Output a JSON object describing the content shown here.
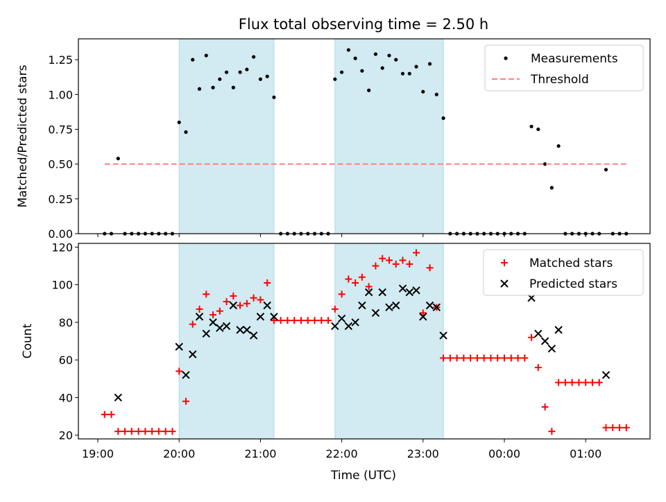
{
  "chart_data": [
    {
      "type": "scatter",
      "title": "Flux total observing time = 2.50 h",
      "xlabel": "",
      "ylabel": "Matched/Predicted stars",
      "x_unit": "time (UTC)",
      "ylim": [
        0,
        1.4
      ],
      "yticks": [
        "0.00",
        "0.25",
        "0.50",
        "0.75",
        "1.00",
        "1.25"
      ],
      "ytick_values": [
        0,
        0.25,
        0.5,
        0.75,
        1.0,
        1.25
      ],
      "shaded_intervals": [
        [
          "20:00",
          "21:10"
        ],
        [
          "21:55",
          "23:15"
        ]
      ],
      "shade_color": "#add8e6",
      "legend": {
        "placement": "top-right",
        "entries": [
          "Measurements",
          "Threshold"
        ]
      },
      "series": [
        {
          "name": "Measurements",
          "color": "#000000",
          "marker": "dot",
          "points": [
            [
              "19:05",
              0
            ],
            [
              "19:10",
              0
            ],
            [
              "19:15",
              0.54
            ],
            [
              "19:20",
              0
            ],
            [
              "19:25",
              0
            ],
            [
              "19:30",
              0
            ],
            [
              "19:35",
              0
            ],
            [
              "19:40",
              0
            ],
            [
              "19:45",
              0
            ],
            [
              "19:50",
              0
            ],
            [
              "19:55",
              0
            ],
            [
              "20:00",
              0.8
            ],
            [
              "20:05",
              0.73
            ],
            [
              "20:10",
              1.25
            ],
            [
              "20:15",
              1.04
            ],
            [
              "20:20",
              1.28
            ],
            [
              "20:25",
              1.05
            ],
            [
              "20:30",
              1.11
            ],
            [
              "20:35",
              1.16
            ],
            [
              "20:40",
              1.05
            ],
            [
              "20:45",
              1.16
            ],
            [
              "20:50",
              1.18
            ],
            [
              "20:55",
              1.27
            ],
            [
              "21:00",
              1.11
            ],
            [
              "21:05",
              1.13
            ],
            [
              "21:10",
              0.98
            ],
            [
              "21:15",
              0
            ],
            [
              "21:20",
              0
            ],
            [
              "21:25",
              0
            ],
            [
              "21:30",
              0
            ],
            [
              "21:35",
              0
            ],
            [
              "21:40",
              0
            ],
            [
              "21:45",
              0
            ],
            [
              "21:50",
              0
            ],
            [
              "21:55",
              1.11
            ],
            [
              "22:00",
              1.16
            ],
            [
              "22:05",
              1.32
            ],
            [
              "22:10",
              1.26
            ],
            [
              "22:15",
              1.17
            ],
            [
              "22:20",
              1.03
            ],
            [
              "22:25",
              1.29
            ],
            [
              "22:30",
              1.19
            ],
            [
              "22:35",
              1.28
            ],
            [
              "22:40",
              1.25
            ],
            [
              "22:45",
              1.15
            ],
            [
              "22:50",
              1.15
            ],
            [
              "22:55",
              1.2
            ],
            [
              "23:00",
              1.02
            ],
            [
              "23:05",
              1.22
            ],
            [
              "23:10",
              1.0
            ],
            [
              "23:15",
              0.83
            ],
            [
              "23:20",
              0
            ],
            [
              "23:25",
              0
            ],
            [
              "23:30",
              0
            ],
            [
              "23:35",
              0
            ],
            [
              "23:40",
              0
            ],
            [
              "23:45",
              0
            ],
            [
              "23:50",
              0
            ],
            [
              "23:55",
              0
            ],
            [
              "00:00",
              0
            ],
            [
              "00:05",
              0
            ],
            [
              "00:10",
              0
            ],
            [
              "00:15",
              0
            ],
            [
              "00:20",
              0.77
            ],
            [
              "00:25",
              0.75
            ],
            [
              "00:30",
              0.5
            ],
            [
              "00:35",
              0.33
            ],
            [
              "00:40",
              0.63
            ],
            [
              "00:45",
              0
            ],
            [
              "00:50",
              0
            ],
            [
              "00:55",
              0
            ],
            [
              "01:00",
              0
            ],
            [
              "01:05",
              0
            ],
            [
              "01:10",
              0
            ],
            [
              "01:15",
              0.46
            ],
            [
              "01:20",
              0
            ],
            [
              "01:25",
              0
            ],
            [
              "01:30",
              0
            ]
          ]
        },
        {
          "name": "Threshold",
          "color": "#ff7f7f",
          "style": "dashed",
          "points": [
            [
              "19:05",
              0.5
            ],
            [
              "01:30",
              0.5
            ]
          ]
        }
      ]
    },
    {
      "type": "scatter",
      "title": "",
      "xlabel": "Time (UTC)",
      "ylabel": "Count",
      "ylim": [
        18,
        122
      ],
      "yticks": [
        "20",
        "40",
        "60",
        "80",
        "100",
        "120"
      ],
      "ytick_values": [
        20,
        40,
        60,
        80,
        100,
        120
      ],
      "xticks": [
        "19:00",
        "20:00",
        "21:00",
        "22:00",
        "23:00",
        "00:00",
        "01:00"
      ],
      "shaded_intervals": [
        [
          "20:00",
          "21:10"
        ],
        [
          "21:55",
          "23:15"
        ]
      ],
      "shade_color": "#add8e6",
      "legend": {
        "placement": "top-right",
        "entries": [
          "Matched stars",
          "Predicted stars"
        ]
      },
      "series": [
        {
          "name": "Matched stars",
          "color": "#ff0000",
          "marker": "plus",
          "points": [
            [
              "19:05",
              31
            ],
            [
              "19:10",
              31
            ],
            [
              "19:15",
              22
            ],
            [
              "19:20",
              22
            ],
            [
              "19:25",
              22
            ],
            [
              "19:30",
              22
            ],
            [
              "19:35",
              22
            ],
            [
              "19:40",
              22
            ],
            [
              "19:45",
              22
            ],
            [
              "19:50",
              22
            ],
            [
              "19:55",
              22
            ],
            [
              "20:00",
              54
            ],
            [
              "20:05",
              38
            ],
            [
              "20:10",
              79
            ],
            [
              "20:15",
              87
            ],
            [
              "20:20",
              95
            ],
            [
              "20:25",
              84
            ],
            [
              "20:30",
              86
            ],
            [
              "20:35",
              91
            ],
            [
              "20:40",
              94
            ],
            [
              "20:45",
              89
            ],
            [
              "20:50",
              90
            ],
            [
              "20:55",
              93
            ],
            [
              "21:00",
              92
            ],
            [
              "21:05",
              101
            ],
            [
              "21:10",
              81
            ],
            [
              "21:15",
              81
            ],
            [
              "21:20",
              81
            ],
            [
              "21:25",
              81
            ],
            [
              "21:30",
              81
            ],
            [
              "21:35",
              81
            ],
            [
              "21:40",
              81
            ],
            [
              "21:45",
              81
            ],
            [
              "21:50",
              81
            ],
            [
              "21:55",
              87
            ],
            [
              "22:00",
              95
            ],
            [
              "22:05",
              103
            ],
            [
              "22:10",
              101
            ],
            [
              "22:15",
              104
            ],
            [
              "22:20",
              99
            ],
            [
              "22:25",
              110
            ],
            [
              "22:30",
              114
            ],
            [
              "22:35",
              113
            ],
            [
              "22:40",
              111
            ],
            [
              "22:45",
              113
            ],
            [
              "22:50",
              111
            ],
            [
              "22:55",
              117
            ],
            [
              "23:00",
              85
            ],
            [
              "23:05",
              109
            ],
            [
              "23:10",
              88
            ],
            [
              "23:15",
              61
            ],
            [
              "23:20",
              61
            ],
            [
              "23:25",
              61
            ],
            [
              "23:30",
              61
            ],
            [
              "23:35",
              61
            ],
            [
              "23:40",
              61
            ],
            [
              "23:45",
              61
            ],
            [
              "23:50",
              61
            ],
            [
              "23:55",
              61
            ],
            [
              "00:00",
              61
            ],
            [
              "00:05",
              61
            ],
            [
              "00:10",
              61
            ],
            [
              "00:15",
              61
            ],
            [
              "00:20",
              72
            ],
            [
              "00:25",
              56
            ],
            [
              "00:30",
              35
            ],
            [
              "00:35",
              22
            ],
            [
              "00:40",
              48
            ],
            [
              "00:45",
              48
            ],
            [
              "00:50",
              48
            ],
            [
              "00:55",
              48
            ],
            [
              "01:00",
              48
            ],
            [
              "01:05",
              48
            ],
            [
              "01:10",
              48
            ],
            [
              "01:15",
              24
            ],
            [
              "01:20",
              24
            ],
            [
              "01:25",
              24
            ],
            [
              "01:30",
              24
            ]
          ]
        },
        {
          "name": "Predicted stars",
          "color": "#000000",
          "marker": "x",
          "points": [
            [
              "19:15",
              40
            ],
            [
              "20:00",
              67
            ],
            [
              "20:05",
              52
            ],
            [
              "20:10",
              63
            ],
            [
              "20:15",
              83
            ],
            [
              "20:20",
              74
            ],
            [
              "20:25",
              80
            ],
            [
              "20:30",
              77
            ],
            [
              "20:35",
              78
            ],
            [
              "20:40",
              89
            ],
            [
              "20:45",
              76
            ],
            [
              "20:50",
              76
            ],
            [
              "20:55",
              73
            ],
            [
              "21:00",
              83
            ],
            [
              "21:05",
              89
            ],
            [
              "21:10",
              83
            ],
            [
              "21:55",
              78
            ],
            [
              "22:00",
              82
            ],
            [
              "22:05",
              78
            ],
            [
              "22:10",
              80
            ],
            [
              "22:15",
              89
            ],
            [
              "22:20",
              96
            ],
            [
              "22:25",
              85
            ],
            [
              "22:30",
              96
            ],
            [
              "22:35",
              88
            ],
            [
              "22:40",
              89
            ],
            [
              "22:45",
              98
            ],
            [
              "22:50",
              96
            ],
            [
              "22:55",
              97
            ],
            [
              "23:00",
              83
            ],
            [
              "23:05",
              89
            ],
            [
              "23:10",
              88
            ],
            [
              "23:15",
              73
            ],
            [
              "00:20",
              93
            ],
            [
              "00:25",
              74
            ],
            [
              "00:30",
              70
            ],
            [
              "00:35",
              66
            ],
            [
              "00:40",
              76
            ],
            [
              "01:15",
              52
            ]
          ]
        }
      ]
    }
  ]
}
